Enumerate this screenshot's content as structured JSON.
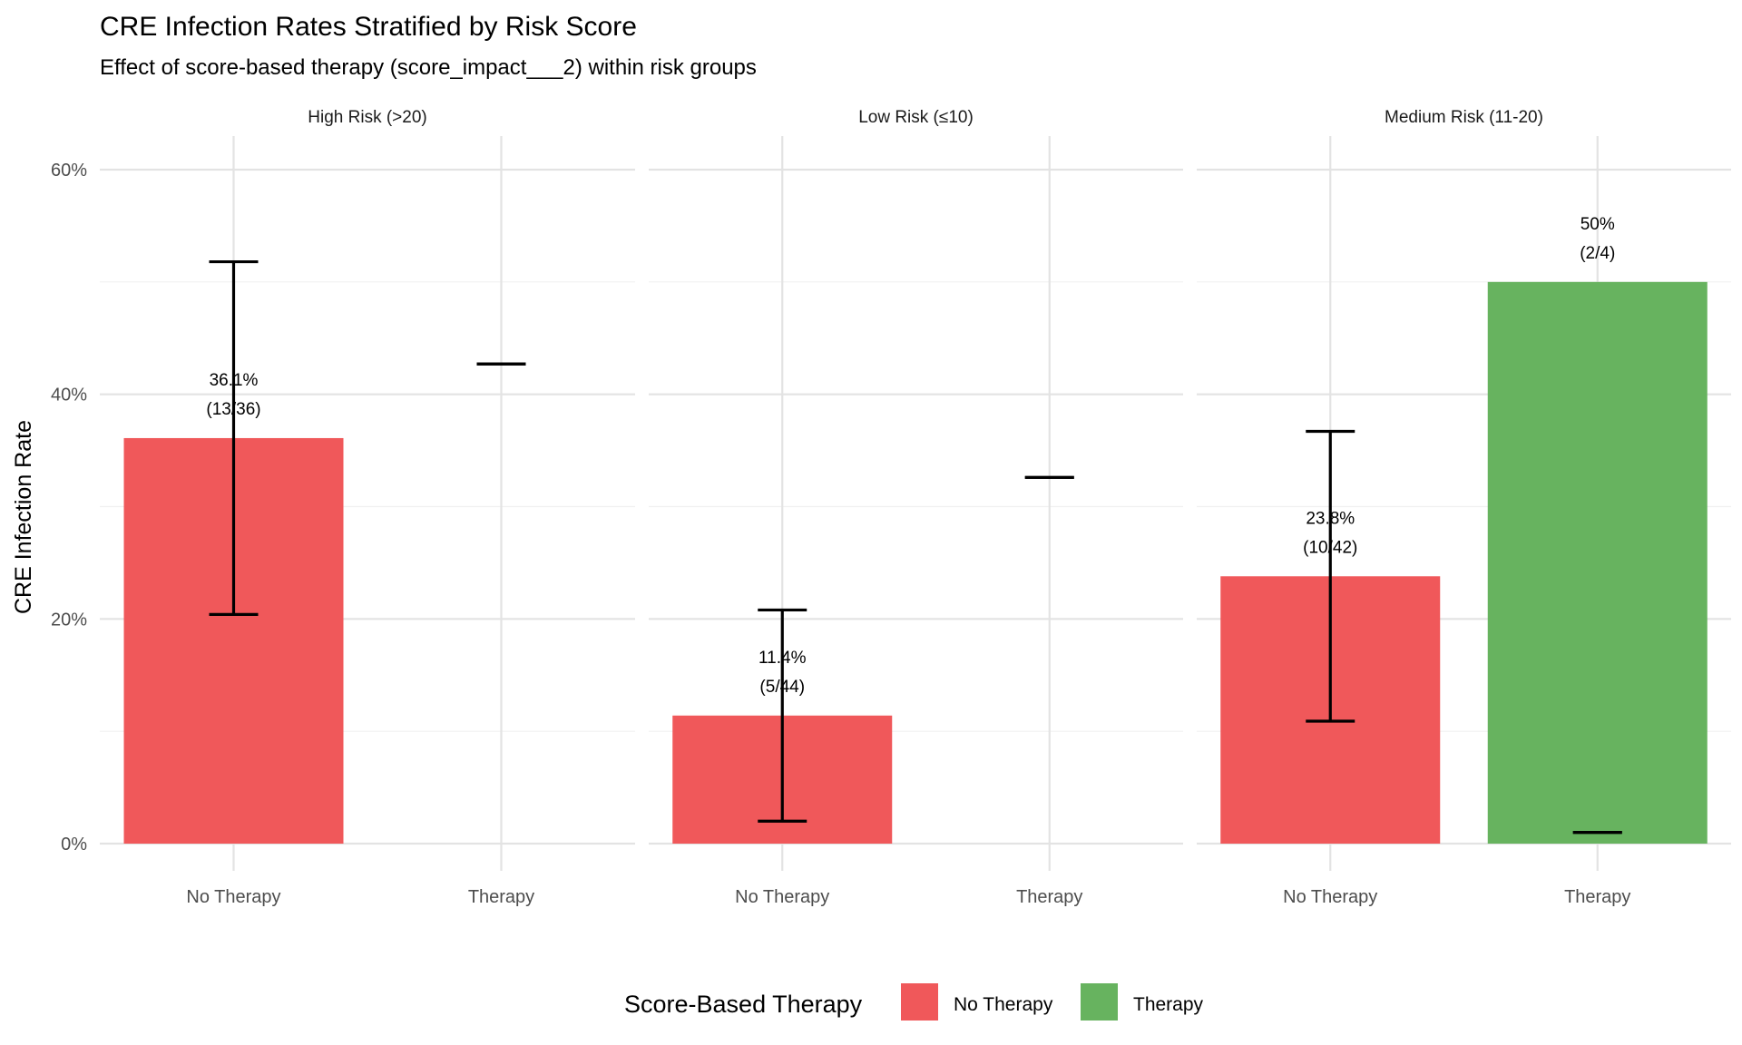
{
  "chart_data": {
    "type": "bar",
    "title": "CRE Infection Rates Stratified by Risk Score",
    "subtitle": "Effect of score-based therapy (score_impact___2) within risk groups",
    "xlabel": "",
    "ylabel": "CRE Infection Rate",
    "ylim": [
      0,
      0.62
    ],
    "yticks": [
      0,
      0.2,
      0.4,
      0.6
    ],
    "ytick_labels": [
      "0%",
      "20%",
      "40%",
      "60%"
    ],
    "categories": [
      "No Therapy",
      "Therapy"
    ],
    "grid": true,
    "colors": {
      "No Therapy": "#F0585A",
      "Therapy": "#67B35F"
    },
    "legend": {
      "title": "Score-Based Therapy",
      "position": "bottom",
      "entries": [
        "No Therapy",
        "Therapy"
      ]
    },
    "facets": [
      {
        "label": "High Risk (>20)",
        "bars": [
          {
            "category": "No Therapy",
            "value": 0.361,
            "ci_low": 0.204,
            "ci_high": 0.518,
            "label_pct": "36.1%",
            "label_n": "(13/36)"
          },
          {
            "category": "Therapy",
            "value": null,
            "ci_low": 0.427,
            "ci_high": 0.427,
            "label_pct": "",
            "label_n": ""
          }
        ]
      },
      {
        "label": "Low Risk (≤10)",
        "bars": [
          {
            "category": "No Therapy",
            "value": 0.114,
            "ci_low": 0.02,
            "ci_high": 0.208,
            "label_pct": "11.4%",
            "label_n": "(5/44)"
          },
          {
            "category": "Therapy",
            "value": null,
            "ci_low": 0.326,
            "ci_high": 0.326,
            "label_pct": "",
            "label_n": ""
          }
        ]
      },
      {
        "label": "Medium Risk (11-20)",
        "bars": [
          {
            "category": "No Therapy",
            "value": 0.238,
            "ci_low": 0.109,
            "ci_high": 0.367,
            "label_pct": "23.8%",
            "label_n": "(10/42)"
          },
          {
            "category": "Therapy",
            "value": 0.5,
            "ci_low": 0.01,
            "ci_high": 0.01,
            "label_pct": "50%",
            "label_n": "(2/4)"
          }
        ]
      }
    ]
  }
}
